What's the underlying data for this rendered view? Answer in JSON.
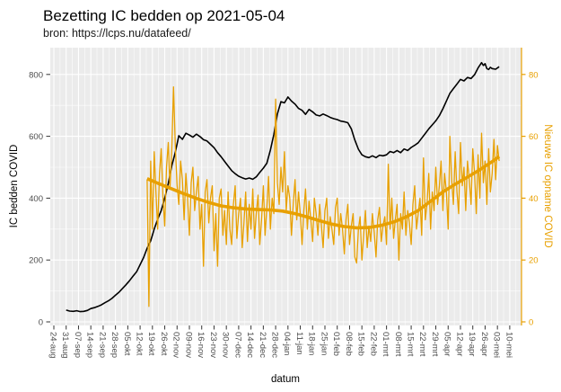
{
  "header": {
    "title": "Bezetting IC bedden op 2021-05-04",
    "subtitle": "bron: https://lcps.nu/datafeed/"
  },
  "chart_data": {
    "type": "line",
    "title": "Bezetting IC bedden op 2021-05-04",
    "subtitle": "bron: https://lcps.nu/datafeed/",
    "xlabel": "datum",
    "legend_position": "none",
    "grid": "on",
    "panel_background": "#ebebeb",
    "grid_color": "#ffffff",
    "x_axis": {
      "start_date": "2020-08-24",
      "tick_interval_days": 7,
      "tick_labels": [
        "24-aug",
        "31-aug",
        "07-sep",
        "14-sep",
        "21-sep",
        "28-sep",
        "05-okt",
        "12-okt",
        "19-okt",
        "26-okt",
        "02-nov",
        "09-nov",
        "16-nov",
        "23-nov",
        "30-nov",
        "07-dec",
        "14-dec",
        "21-dec",
        "28-dec",
        "04-jan",
        "11-jan",
        "18-jan",
        "25-jan",
        "01-feb",
        "08-feb",
        "15-feb",
        "22-feb",
        "01-mrt",
        "08-mrt",
        "15-mrt",
        "22-mrt",
        "29-mrt",
        "05-apr",
        "12-apr",
        "19-apr",
        "26-apr",
        "03-mei",
        "10-mei"
      ],
      "tick_label_color": "#4d4d4d"
    },
    "y_left": {
      "label": "IC bedden COVID",
      "ticks": [
        0,
        200,
        400,
        600,
        800
      ],
      "range": [
        0,
        880
      ],
      "tick_label_color": "#4d4d4d",
      "title_color": "#000000"
    },
    "y_right": {
      "label": "Nieuwe IC opname COVID",
      "ticks": [
        0,
        20,
        40,
        60,
        80
      ],
      "range": [
        0,
        88
      ],
      "tick_label_color": "#e8a000",
      "title_color": "#e8a000",
      "axis_line_color": "#e8a000"
    },
    "series": [
      {
        "name": "ic-bedden-bezetting",
        "axis": "left",
        "color": "#000000",
        "width": 1.6,
        "points": [
          [
            "2020-08-31",
            38
          ],
          [
            "2020-09-02",
            35
          ],
          [
            "2020-09-04",
            34
          ],
          [
            "2020-09-06",
            36
          ],
          [
            "2020-09-08",
            33
          ],
          [
            "2020-09-10",
            34
          ],
          [
            "2020-09-12",
            37
          ],
          [
            "2020-09-14",
            43
          ],
          [
            "2020-09-16",
            46
          ],
          [
            "2020-09-18",
            50
          ],
          [
            "2020-09-20",
            55
          ],
          [
            "2020-09-22",
            62
          ],
          [
            "2020-09-24",
            68
          ],
          [
            "2020-09-26",
            76
          ],
          [
            "2020-09-28",
            86
          ],
          [
            "2020-09-30",
            96
          ],
          [
            "2020-10-02",
            108
          ],
          [
            "2020-10-04",
            120
          ],
          [
            "2020-10-06",
            133
          ],
          [
            "2020-10-08",
            148
          ],
          [
            "2020-10-10",
            162
          ],
          [
            "2020-10-12",
            185
          ],
          [
            "2020-10-14",
            208
          ],
          [
            "2020-10-16",
            238
          ],
          [
            "2020-10-18",
            262
          ],
          [
            "2020-10-20",
            300
          ],
          [
            "2020-10-22",
            332
          ],
          [
            "2020-10-24",
            360
          ],
          [
            "2020-10-26",
            400
          ],
          [
            "2020-10-28",
            448
          ],
          [
            "2020-10-30",
            505
          ],
          [
            "2020-11-01",
            548
          ],
          [
            "2020-11-03",
            602
          ],
          [
            "2020-11-05",
            590
          ],
          [
            "2020-11-07",
            610
          ],
          [
            "2020-11-09",
            604
          ],
          [
            "2020-11-11",
            597
          ],
          [
            "2020-11-13",
            607
          ],
          [
            "2020-11-15",
            599
          ],
          [
            "2020-11-17",
            589
          ],
          [
            "2020-11-19",
            585
          ],
          [
            "2020-11-21",
            574
          ],
          [
            "2020-11-23",
            563
          ],
          [
            "2020-11-25",
            547
          ],
          [
            "2020-11-27",
            534
          ],
          [
            "2020-11-29",
            519
          ],
          [
            "2020-12-01",
            504
          ],
          [
            "2020-12-03",
            489
          ],
          [
            "2020-12-05",
            479
          ],
          [
            "2020-12-07",
            471
          ],
          [
            "2020-12-09",
            466
          ],
          [
            "2020-12-11",
            462
          ],
          [
            "2020-12-13",
            465
          ],
          [
            "2020-12-15",
            461
          ],
          [
            "2020-12-17",
            469
          ],
          [
            "2020-12-19",
            483
          ],
          [
            "2020-12-21",
            497
          ],
          [
            "2020-12-23",
            513
          ],
          [
            "2020-12-25",
            555
          ],
          [
            "2020-12-27",
            606
          ],
          [
            "2020-12-29",
            672
          ],
          [
            "2020-12-31",
            712
          ],
          [
            "2021-01-02",
            708
          ],
          [
            "2021-01-04",
            727
          ],
          [
            "2021-01-06",
            714
          ],
          [
            "2021-01-08",
            704
          ],
          [
            "2021-01-10",
            690
          ],
          [
            "2021-01-12",
            684
          ],
          [
            "2021-01-14",
            671
          ],
          [
            "2021-01-16",
            687
          ],
          [
            "2021-01-18",
            679
          ],
          [
            "2021-01-20",
            669
          ],
          [
            "2021-01-22",
            666
          ],
          [
            "2021-01-24",
            672
          ],
          [
            "2021-01-26",
            667
          ],
          [
            "2021-01-28",
            661
          ],
          [
            "2021-01-30",
            657
          ],
          [
            "2021-02-01",
            654
          ],
          [
            "2021-02-03",
            649
          ],
          [
            "2021-02-05",
            647
          ],
          [
            "2021-02-07",
            644
          ],
          [
            "2021-02-09",
            624
          ],
          [
            "2021-02-11",
            588
          ],
          [
            "2021-02-13",
            558
          ],
          [
            "2021-02-15",
            540
          ],
          [
            "2021-02-17",
            534
          ],
          [
            "2021-02-19",
            531
          ],
          [
            "2021-02-21",
            537
          ],
          [
            "2021-02-23",
            531
          ],
          [
            "2021-02-25",
            539
          ],
          [
            "2021-02-27",
            537
          ],
          [
            "2021-03-01",
            540
          ],
          [
            "2021-03-03",
            551
          ],
          [
            "2021-03-05",
            547
          ],
          [
            "2021-03-07",
            554
          ],
          [
            "2021-03-09",
            547
          ],
          [
            "2021-03-11",
            559
          ],
          [
            "2021-03-13",
            554
          ],
          [
            "2021-03-15",
            564
          ],
          [
            "2021-03-17",
            571
          ],
          [
            "2021-03-19",
            579
          ],
          [
            "2021-03-21",
            594
          ],
          [
            "2021-03-23",
            609
          ],
          [
            "2021-03-25",
            624
          ],
          [
            "2021-03-27",
            637
          ],
          [
            "2021-03-29",
            650
          ],
          [
            "2021-03-31",
            667
          ],
          [
            "2021-04-02",
            689
          ],
          [
            "2021-04-04",
            714
          ],
          [
            "2021-04-06",
            739
          ],
          [
            "2021-04-08",
            754
          ],
          [
            "2021-04-10",
            769
          ],
          [
            "2021-04-12",
            784
          ],
          [
            "2021-04-14",
            779
          ],
          [
            "2021-04-16",
            790
          ],
          [
            "2021-04-18",
            787
          ],
          [
            "2021-04-20",
            799
          ],
          [
            "2021-04-22",
            821
          ],
          [
            "2021-04-24",
            838
          ],
          [
            "2021-04-25",
            829
          ],
          [
            "2021-04-26",
            835
          ],
          [
            "2021-04-27",
            819
          ],
          [
            "2021-04-28",
            816
          ],
          [
            "2021-04-29",
            823
          ],
          [
            "2021-04-30",
            819
          ],
          [
            "2021-05-02",
            817
          ],
          [
            "2021-05-04",
            825
          ]
        ]
      },
      {
        "name": "nieuwe-ic-opnames-dagelijks",
        "axis": "right",
        "color": "#e8a000",
        "width": 1.3,
        "daily_start": "2020-10-16",
        "daily_values": [
          46,
          5,
          52,
          30,
          55,
          42,
          30,
          48,
          56,
          40,
          31,
          50,
          58,
          43,
          56,
          76,
          57,
          44,
          38,
          52,
          46,
          33,
          48,
          40,
          28,
          45,
          50,
          36,
          42,
          47,
          30,
          38,
          18,
          42,
          46,
          32,
          40,
          44,
          23,
          35,
          18,
          40,
          43,
          28,
          36,
          25,
          42,
          30,
          25,
          38,
          44,
          27,
          35,
          40,
          24,
          32,
          42,
          26,
          38,
          30,
          43,
          27,
          35,
          41,
          25,
          33,
          44,
          28,
          37,
          47,
          30,
          40,
          35,
          72,
          45,
          38,
          50,
          42,
          55,
          36,
          44,
          40,
          28,
          38,
          46,
          33,
          42,
          35,
          25,
          36,
          43,
          30,
          39,
          33,
          26,
          40,
          35,
          28,
          38,
          31,
          24,
          36,
          40,
          27,
          34,
          30,
          25,
          37,
          40,
          28,
          35,
          30,
          22,
          33,
          38,
          25,
          31,
          35,
          21,
          19,
          30,
          34,
          20,
          28,
          36,
          24,
          31,
          26,
          35,
          29,
          21,
          33,
          37,
          26,
          31,
          34,
          25,
          51,
          30,
          40,
          27,
          33,
          38,
          20,
          35,
          30,
          42,
          28,
          36,
          32,
          25,
          38,
          44,
          30,
          35,
          40,
          28,
          53,
          33,
          38,
          48,
          30,
          42,
          36,
          50,
          38,
          44,
          52,
          36,
          48,
          42,
          30,
          60,
          46,
          38,
          55,
          42,
          35,
          58,
          44,
          50,
          36,
          52,
          46,
          38,
          56,
          48,
          35,
          54,
          40,
          61,
          45,
          52,
          38,
          56,
          42,
          48,
          59,
          46,
          57,
          52
        ]
      },
      {
        "name": "nieuwe-ic-opnames-trend",
        "axis": "right",
        "color": "#e8a000",
        "width": 3.6,
        "points": [
          [
            "2020-10-16",
            46.3
          ],
          [
            "2020-10-23",
            44.6
          ],
          [
            "2020-10-30",
            43.0
          ],
          [
            "2020-11-06",
            41.4
          ],
          [
            "2020-11-13",
            39.9
          ],
          [
            "2020-11-20",
            38.6
          ],
          [
            "2020-11-27",
            37.5
          ],
          [
            "2020-12-04",
            36.9
          ],
          [
            "2020-12-11",
            36.5
          ],
          [
            "2020-12-18",
            36.3
          ],
          [
            "2020-12-25",
            36.2
          ],
          [
            "2021-01-01",
            35.8
          ],
          [
            "2021-01-08",
            35.0
          ],
          [
            "2021-01-15",
            33.9
          ],
          [
            "2021-01-22",
            32.7
          ],
          [
            "2021-01-29",
            31.6
          ],
          [
            "2021-02-05",
            30.8
          ],
          [
            "2021-02-12",
            30.4
          ],
          [
            "2021-02-19",
            30.5
          ],
          [
            "2021-02-26",
            31.2
          ],
          [
            "2021-03-05",
            32.3
          ],
          [
            "2021-03-12",
            33.9
          ],
          [
            "2021-03-19",
            36.0
          ],
          [
            "2021-03-26",
            39.0
          ],
          [
            "2021-04-02",
            42.0
          ],
          [
            "2021-04-09",
            44.5
          ],
          [
            "2021-04-16",
            46.8
          ],
          [
            "2021-04-23",
            49.2
          ],
          [
            "2021-04-30",
            51.8
          ],
          [
            "2021-05-04",
            53.5
          ]
        ]
      }
    ]
  }
}
